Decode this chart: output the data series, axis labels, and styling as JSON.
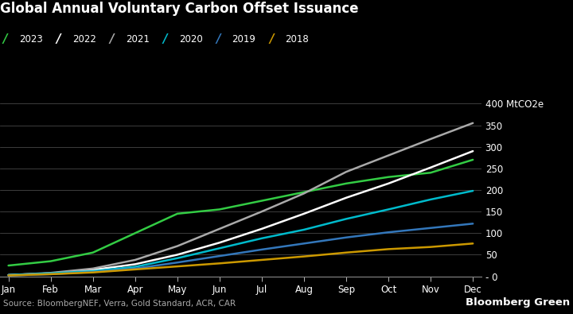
{
  "title": "Global Annual Voluntary Carbon Offset Issuance",
  "source": "Source: BloombergNEF, Verra, Gold Standard, ACR, CAR",
  "watermark": "Bloomberg Green",
  "background_color": "#000000",
  "text_color": "#ffffff",
  "grid_color": "#555555",
  "months": [
    "Jan",
    "Feb",
    "Mar",
    "Apr",
    "May",
    "Jun",
    "Jul",
    "Aug",
    "Sep",
    "Oct",
    "Nov",
    "Dec"
  ],
  "series": [
    {
      "label": "2023",
      "color": "#33cc44",
      "data": [
        25,
        35,
        55,
        100,
        145,
        155,
        175,
        195,
        215,
        230,
        240,
        270
      ]
    },
    {
      "label": "2022",
      "color": "#ffffff",
      "data": [
        3,
        7,
        15,
        28,
        50,
        78,
        110,
        145,
        182,
        215,
        252,
        290
      ]
    },
    {
      "label": "2021",
      "color": "#aaaaaa",
      "data": [
        3,
        8,
        18,
        38,
        70,
        110,
        150,
        192,
        242,
        280,
        318,
        355
      ]
    },
    {
      "label": "2020",
      "color": "#00bbcc",
      "data": [
        3,
        7,
        12,
        22,
        42,
        65,
        88,
        108,
        133,
        155,
        178,
        198
      ]
    },
    {
      "label": "2019",
      "color": "#3377bb",
      "data": [
        2,
        5,
        10,
        18,
        32,
        47,
        62,
        76,
        90,
        102,
        112,
        122
      ]
    },
    {
      "label": "2018",
      "color": "#cc9900",
      "data": [
        2,
        5,
        9,
        16,
        23,
        30,
        38,
        46,
        55,
        63,
        68,
        76
      ]
    }
  ],
  "ylim": [
    0,
    400
  ],
  "yticks": [
    0,
    50,
    100,
    150,
    200,
    250,
    300,
    350,
    400
  ]
}
